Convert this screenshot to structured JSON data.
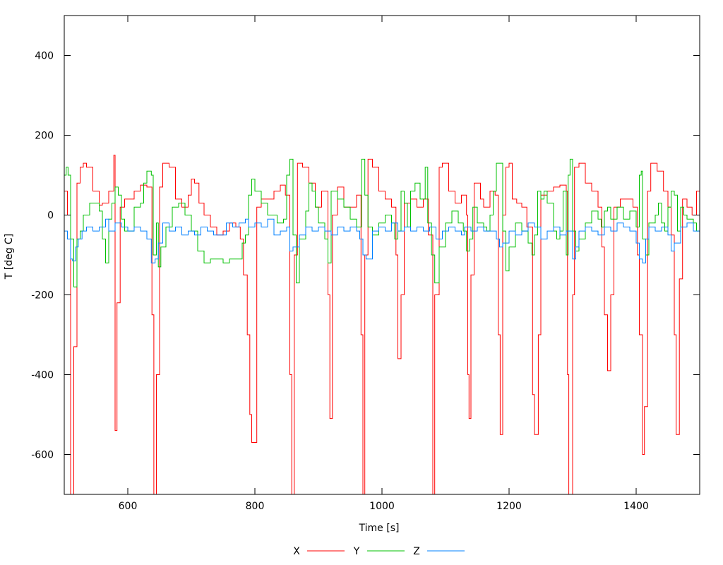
{
  "chart_data": {
    "type": "line",
    "title": "",
    "xlabel": "Time [s]",
    "ylabel": "T [deg C]",
    "xlim": [
      500,
      1500
    ],
    "ylim": [
      -700,
      500
    ],
    "xticks": [
      600,
      800,
      1000,
      1200,
      1400
    ],
    "yticks": [
      -600,
      -400,
      -200,
      0,
      200,
      400
    ],
    "grid": false,
    "legend": "bottom-center",
    "series": [
      {
        "name": "X",
        "color": "#ff0000",
        "x": [
          500,
          505,
          510,
          515,
          520,
          525,
          530,
          535,
          545,
          555,
          560,
          570,
          575,
          578,
          580,
          583,
          588,
          595,
          605,
          610,
          620,
          630,
          638,
          641,
          645,
          650,
          655,
          665,
          675,
          685,
          695,
          700,
          705,
          712,
          720,
          730,
          740,
          750,
          760,
          770,
          777,
          782,
          788,
          792,
          795,
          800,
          803,
          810,
          820,
          830,
          840,
          848,
          855,
          858,
          862,
          867,
          875,
          885,
          895,
          905,
          910,
          915,
          918,
          922,
          930,
          940,
          950,
          960,
          967,
          970,
          973,
          978,
          985,
          995,
          1005,
          1015,
          1022,
          1025,
          1030,
          1035,
          1045,
          1055,
          1065,
          1073,
          1080,
          1083,
          1090,
          1095,
          1105,
          1115,
          1125,
          1133,
          1135,
          1137,
          1140,
          1145,
          1155,
          1160,
          1170,
          1178,
          1183,
          1186,
          1190,
          1195,
          1200,
          1205,
          1212,
          1220,
          1228,
          1237,
          1240,
          1246,
          1250,
          1260,
          1270,
          1280,
          1290,
          1292,
          1294,
          1300,
          1303,
          1310,
          1320,
          1330,
          1340,
          1346,
          1350,
          1355,
          1360,
          1365,
          1375,
          1385,
          1395,
          1402,
          1405,
          1410,
          1413,
          1418,
          1423,
          1433,
          1443,
          1450,
          1455,
          1460,
          1463,
          1468,
          1473,
          1480,
          1488,
          1495,
          1500
        ],
        "y": [
          60,
          0,
          -700,
          -330,
          80,
          120,
          130,
          120,
          60,
          25,
          30,
          60,
          60,
          150,
          -540,
          -220,
          20,
          40,
          40,
          60,
          75,
          70,
          -250,
          -700,
          -400,
          70,
          130,
          120,
          40,
          20,
          50,
          90,
          80,
          30,
          0,
          -30,
          -50,
          -40,
          -20,
          -30,
          -60,
          -150,
          -300,
          -500,
          -570,
          -570,
          20,
          40,
          40,
          60,
          75,
          50,
          -400,
          -700,
          -100,
          130,
          120,
          80,
          20,
          60,
          60,
          -200,
          -510,
          0,
          70,
          20,
          20,
          50,
          -300,
          -700,
          -100,
          140,
          120,
          60,
          40,
          20,
          -100,
          -360,
          -200,
          30,
          40,
          20,
          40,
          -50,
          -700,
          -200,
          120,
          130,
          60,
          30,
          50,
          0,
          -400,
          -510,
          -150,
          80,
          40,
          20,
          60,
          50,
          -300,
          -550,
          0,
          120,
          130,
          40,
          30,
          20,
          -30,
          -450,
          -550,
          -300,
          50,
          60,
          70,
          75,
          60,
          -400,
          -700,
          -200,
          120,
          130,
          80,
          60,
          20,
          -80,
          -250,
          -390,
          -200,
          20,
          40,
          40,
          20,
          -100,
          -300,
          -600,
          -480,
          60,
          130,
          110,
          60,
          20,
          -50,
          -300,
          -550,
          -160,
          40,
          20,
          0,
          60,
          70
        ]
      },
      {
        "name": "Y",
        "color": "#00c000",
        "x": [
          500,
          503,
          506,
          510,
          515,
          520,
          525,
          530,
          540,
          550,
          555,
          560,
          565,
          570,
          575,
          580,
          585,
          590,
          595,
          600,
          610,
          620,
          625,
          630,
          637,
          640,
          645,
          648,
          652,
          660,
          670,
          680,
          690,
          700,
          710,
          720,
          730,
          740,
          750,
          760,
          770,
          780,
          785,
          790,
          795,
          800,
          810,
          820,
          835,
          845,
          850,
          855,
          860,
          865,
          870,
          880,
          885,
          890,
          895,
          900,
          910,
          915,
          920,
          930,
          940,
          950,
          960,
          968,
          973,
          978,
          985,
          995,
          1005,
          1015,
          1020,
          1025,
          1030,
          1035,
          1040,
          1045,
          1052,
          1060,
          1068,
          1072,
          1078,
          1083,
          1090,
          1100,
          1110,
          1120,
          1128,
          1133,
          1138,
          1143,
          1150,
          1160,
          1165,
          1170,
          1175,
          1180,
          1185,
          1190,
          1195,
          1200,
          1210,
          1220,
          1230,
          1236,
          1240,
          1245,
          1250,
          1255,
          1260,
          1270,
          1275,
          1280,
          1285,
          1290,
          1293,
          1296,
          1300,
          1305,
          1310,
          1320,
          1330,
          1340,
          1345,
          1350,
          1355,
          1360,
          1370,
          1380,
          1390,
          1400,
          1405,
          1408,
          1410,
          1415,
          1420,
          1430,
          1435,
          1440,
          1445,
          1450,
          1455,
          1460,
          1465,
          1470,
          1475,
          1480,
          1490,
          1495,
          1500
        ],
        "y": [
          100,
          120,
          100,
          -60,
          -180,
          -60,
          -40,
          0,
          30,
          30,
          10,
          -60,
          -120,
          -10,
          30,
          70,
          50,
          -10,
          -40,
          -40,
          20,
          30,
          80,
          110,
          100,
          -100,
          -20,
          -130,
          -80,
          -30,
          20,
          30,
          0,
          -40,
          -90,
          -120,
          -110,
          -110,
          -120,
          -110,
          -110,
          -70,
          -50,
          50,
          90,
          60,
          30,
          0,
          -20,
          -10,
          100,
          140,
          -50,
          -170,
          -60,
          10,
          80,
          60,
          20,
          -20,
          -60,
          -120,
          60,
          40,
          20,
          -10,
          -30,
          140,
          50,
          -30,
          -50,
          -20,
          0,
          -20,
          -60,
          -40,
          60,
          30,
          -30,
          60,
          80,
          40,
          120,
          -20,
          -100,
          -170,
          -80,
          -20,
          10,
          -20,
          -40,
          -90,
          -60,
          20,
          -20,
          -30,
          -40,
          0,
          60,
          130,
          130,
          -40,
          -140,
          -80,
          -20,
          -40,
          -70,
          -100,
          -50,
          60,
          40,
          60,
          30,
          -40,
          -60,
          -40,
          60,
          -100,
          100,
          140,
          -40,
          -90,
          -60,
          -20,
          10,
          -10,
          -30,
          10,
          20,
          -10,
          20,
          -10,
          10,
          -30,
          100,
          110,
          -60,
          -100,
          -20,
          0,
          30,
          -20,
          -40,
          20,
          60,
          50,
          -40,
          20,
          0,
          -10,
          -20,
          -40,
          -30
        ]
      },
      {
        "name": "Z",
        "color": "#0080ff",
        "x": [
          500,
          505,
          510,
          513,
          518,
          522,
          528,
          535,
          545,
          555,
          565,
          570,
          580,
          590,
          600,
          610,
          620,
          630,
          637,
          643,
          648,
          655,
          665,
          675,
          685,
          695,
          705,
          715,
          725,
          735,
          745,
          755,
          765,
          775,
          785,
          790,
          800,
          810,
          820,
          830,
          840,
          850,
          855,
          860,
          870,
          880,
          890,
          900,
          910,
          920,
          930,
          940,
          950,
          960,
          965,
          970,
          975,
          985,
          995,
          1005,
          1015,
          1025,
          1035,
          1045,
          1055,
          1065,
          1075,
          1085,
          1095,
          1105,
          1115,
          1125,
          1130,
          1140,
          1150,
          1160,
          1170,
          1180,
          1185,
          1190,
          1200,
          1210,
          1220,
          1230,
          1240,
          1250,
          1260,
          1270,
          1280,
          1290,
          1300,
          1305,
          1310,
          1320,
          1330,
          1340,
          1350,
          1360,
          1370,
          1380,
          1390,
          1400,
          1405,
          1410,
          1415,
          1420,
          1430,
          1440,
          1450,
          1455,
          1460,
          1470,
          1480,
          1490,
          1500
        ],
        "y": [
          -40,
          -60,
          -110,
          -115,
          -80,
          -60,
          -40,
          -30,
          -40,
          -30,
          -10,
          -40,
          -20,
          -30,
          -40,
          -30,
          -40,
          -60,
          -120,
          -110,
          -70,
          -20,
          -40,
          -30,
          -50,
          -40,
          -50,
          -30,
          -40,
          -50,
          -50,
          -20,
          -30,
          -20,
          -10,
          -30,
          -20,
          -30,
          -10,
          -50,
          -40,
          -30,
          -90,
          -80,
          -50,
          -30,
          -40,
          -30,
          -40,
          -50,
          -30,
          -40,
          -30,
          -40,
          -60,
          -100,
          -110,
          -40,
          -30,
          -40,
          -20,
          -40,
          -30,
          -40,
          -30,
          -40,
          -30,
          -60,
          -40,
          -30,
          -40,
          -50,
          -30,
          -40,
          -30,
          -40,
          -40,
          -60,
          -80,
          -70,
          -40,
          -50,
          -40,
          -20,
          -30,
          -60,
          -40,
          -30,
          -50,
          -40,
          -110,
          -80,
          -40,
          -30,
          -40,
          -50,
          -30,
          -40,
          -20,
          -30,
          -40,
          -70,
          -110,
          -120,
          -60,
          -30,
          -40,
          -30,
          -50,
          -90,
          -70,
          -30,
          -20,
          -40,
          -30
        ]
      }
    ]
  }
}
